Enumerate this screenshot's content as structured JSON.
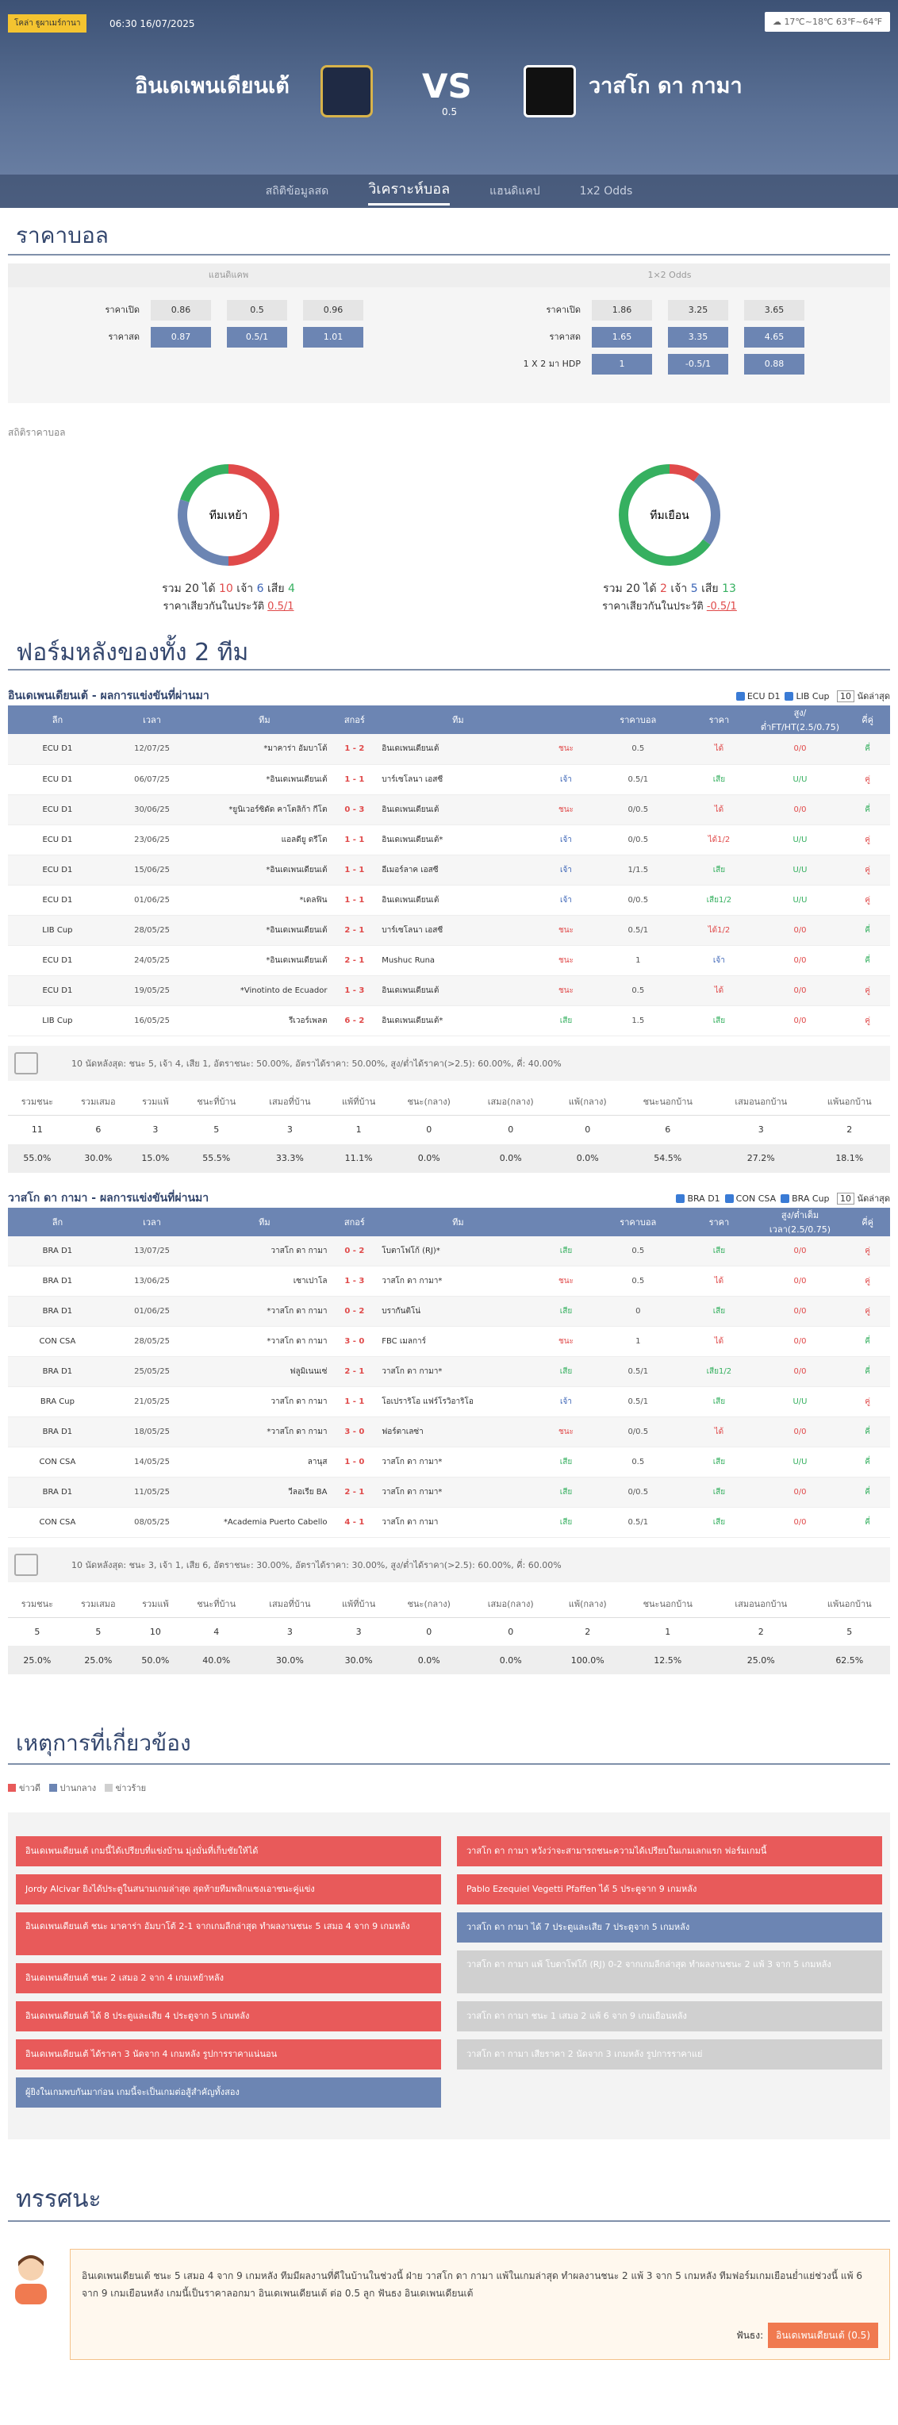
{
  "header": {
    "venue": "โคล่า ฐูผาเมร์กานา",
    "kickoff": "06:30 16/07/2025",
    "weather": "17℃~18℃ 63℉~64℉",
    "home": "อินเดเพนเดียนเต้",
    "away": "วาสโก ดา กามา",
    "vs": "VS",
    "handicap": "0.5"
  },
  "tabs": [
    {
      "label": "สถิติข้อมูลสด"
    },
    {
      "label": "วิเคราะห์บอล"
    },
    {
      "label": "แฮนดิแคป"
    },
    {
      "label": "1x2 Odds"
    }
  ],
  "odds": {
    "title": "ราคาบอล",
    "head_left": "แฮนดิแคพ",
    "head_right": "1×2 Odds",
    "left": [
      {
        "label": "ราคาเปิด",
        "v": [
          "0.86",
          "0.5",
          "0.96"
        ]
      },
      {
        "label": "ราคาสด",
        "v": [
          "0.87",
          "0.5/1",
          "1.01"
        ]
      }
    ],
    "right": [
      {
        "label": "ราคาเปิด",
        "v": [
          "1.86",
          "3.25",
          "3.65"
        ]
      },
      {
        "label": "ราคาสด",
        "v": [
          "1.65",
          "3.35",
          "4.65"
        ]
      },
      {
        "label": "1 X 2 มา HDP",
        "v": [
          "1",
          "-0.5/1",
          "0.88"
        ]
      }
    ]
  },
  "stats_label": "สถิติราคาบอล",
  "donuts": [
    {
      "center": "ทีมเหย้า",
      "total_l": "รวม",
      "total": "20",
      "win_l": "ได้",
      "win": "10",
      "draw_l": "เจ้า",
      "draw": "6",
      "loss_l": "เสีย",
      "loss": "4",
      "rate_l": "ราคาเสียวกันในประวัติ",
      "rate": "0.5/1",
      "shares": [
        0.5,
        0.3,
        0.2
      ]
    },
    {
      "center": "ทีมเยือน",
      "total_l": "รวม",
      "total": "20",
      "win_l": "ได้",
      "win": "2",
      "draw_l": "เจ้า",
      "draw": "5",
      "loss_l": "เสีย",
      "loss": "13",
      "rate_l": "ราคาเสียวกันในประวัติ",
      "rate": "-0.5/1",
      "shares": [
        0.1,
        0.25,
        0.65
      ]
    }
  ],
  "form_title": "ฟอร์มหลังของทั้ง 2 ทีม",
  "home_table": {
    "title": "อินเดเพนเดียนเต้ - ผลการแข่งขันที่ผ่านมา",
    "filters": [
      "ECU D1",
      "LIB Cup"
    ],
    "count": "10",
    "filter_tail": "นัดล่าสุด",
    "headers": [
      "ลีก",
      "เวลา",
      "ทีม",
      "สกอร์",
      "ทีม",
      "",
      "ราคาบอล",
      "ราคา",
      "สูง/ต่ำFT/HT(2.5/0.75)",
      "คี่คู่"
    ],
    "rows": [
      [
        "ECU D1",
        "12/07/25",
        "*มาคาร่า อัมบาโต้",
        "1 - 2",
        "อินเดเพนเดียนเต้",
        "ชนะ",
        "0.5",
        "ได้",
        "0/0",
        "คี่"
      ],
      [
        "ECU D1",
        "06/07/25",
        "*อินเดเพนเดียนเต้",
        "1 - 1",
        "บาร์เซโลนา เอสซี",
        "เจ้า",
        "0.5/1",
        "เสีย",
        "U/U",
        "คู่"
      ],
      [
        "ECU D1",
        "30/06/25",
        "*ยูนิเวอร์ซิดัด คาโตลิก้า กีโต",
        "0 - 3",
        "อินเดเพนเดียนเต้",
        "ชนะ",
        "0/0.5",
        "ได้",
        "0/0",
        "คี่"
      ],
      [
        "ECU D1",
        "23/06/25",
        "แอลดียู ดรีโต",
        "1 - 1",
        "อินเดเพนเดียนเต้*",
        "เจ้า",
        "0/0.5",
        "ได้1/2",
        "U/U",
        "คู่"
      ],
      [
        "ECU D1",
        "15/06/25",
        "*อินเดเพนเดียนเต้",
        "1 - 1",
        "อีเมอร์ลาค เอสซี",
        "เจ้า",
        "1/1.5",
        "เสีย",
        "U/U",
        "คู่"
      ],
      [
        "ECU D1",
        "01/06/25",
        "*เดลฟิน",
        "1 - 1",
        "อินเดเพนเดียนเต้",
        "เจ้า",
        "0/0.5",
        "เสีย1/2",
        "U/U",
        "คู่"
      ],
      [
        "LIB Cup",
        "28/05/25",
        "*อินเดเพนเดียนเต้",
        "2 - 1",
        "บาร์เซโลนา เอสซี",
        "ชนะ",
        "0.5/1",
        "ได้1/2",
        "0/0",
        "คี่"
      ],
      [
        "ECU D1",
        "24/05/25",
        "*อินเดเพนเดียนเต้",
        "2 - 1",
        "Mushuc Runa",
        "ชนะ",
        "1",
        "เจ้า",
        "0/0",
        "คี่"
      ],
      [
        "ECU D1",
        "19/05/25",
        "*Vinotinto de Ecuador",
        "1 - 3",
        "อินเดเพนเดียนเต้",
        "ชนะ",
        "0.5",
        "ได้",
        "0/0",
        "คู่"
      ],
      [
        "LIB Cup",
        "16/05/25",
        "รีเวอร์เพลต",
        "6 - 2",
        "อินเดเพนเดียนเต้*",
        "เสีย",
        "1.5",
        "เสีย",
        "0/0",
        "คู่"
      ]
    ],
    "summary": "10 นัดหลังสุด: ชนะ 5, เจ้า 4, เสีย 1, อัตราชนะ: 50.00%, อัตราได้ราคา: 50.00%, สูง/ต่ำได้ราคา(>2.5): 60.00%, คี่: 40.00%",
    "stat_headers": [
      "รวมชนะ",
      "รวมเสมอ",
      "รวมแพ้",
      "ชนะที่บ้าน",
      "เสมอที่บ้าน",
      "แพ้ที่บ้าน",
      "ชนะ(กลาง)",
      "เสมอ(กลาง)",
      "แพ้(กลาง)",
      "ชนะนอกบ้าน",
      "เสมอนอกบ้าน",
      "แพ้นอกบ้าน"
    ],
    "stat_counts": [
      "11",
      "6",
      "3",
      "5",
      "3",
      "1",
      "0",
      "0",
      "0",
      "6",
      "3",
      "2"
    ],
    "stat_pcts": [
      "55.0%",
      "30.0%",
      "15.0%",
      "55.5%",
      "33.3%",
      "11.1%",
      "0.0%",
      "0.0%",
      "0.0%",
      "54.5%",
      "27.2%",
      "18.1%"
    ]
  },
  "away_table": {
    "title": "วาสโก ดา กามา - ผลการแข่งขันที่ผ่านมา",
    "filters": [
      "BRA D1",
      "CON CSA",
      "BRA Cup"
    ],
    "count": "10",
    "filter_tail": "นัดล่าสุด",
    "headers": [
      "ลีก",
      "เวลา",
      "ทีม",
      "สกอร์",
      "ทีม",
      "",
      "ราคาบอล",
      "ราคา",
      "สูง/ต่ำเต็มเวลา(2.5/0.75)",
      "คี่คู่"
    ],
    "rows": [
      [
        "BRA D1",
        "13/07/25",
        "วาสโก ดา กามา",
        "0 - 2",
        "โบตาโฟโก้ (RJ)*",
        "เสีย",
        "0.5",
        "เสีย",
        "0/0",
        "คู่"
      ],
      [
        "BRA D1",
        "13/06/25",
        "เซาเปาโล",
        "1 - 3",
        "วาสโก ดา กามา*",
        "ชนะ",
        "0.5",
        "ได้",
        "0/0",
        "คู่"
      ],
      [
        "BRA D1",
        "01/06/25",
        "*วาสโก ดา กามา",
        "0 - 2",
        "บรากันติโน่",
        "เสีย",
        "0",
        "เสีย",
        "0/0",
        "คู่"
      ],
      [
        "CON CSA",
        "28/05/25",
        "*วาสโก ดา กามา",
        "3 - 0",
        "FBC เมลการ์",
        "ชนะ",
        "1",
        "ได้",
        "0/0",
        "คี่"
      ],
      [
        "BRA D1",
        "25/05/25",
        "ฟลูมิเนนเซ่",
        "2 - 1",
        "วาสโก ดา กามา*",
        "เสีย",
        "0.5/1",
        "เสีย1/2",
        "0/0",
        "คี่"
      ],
      [
        "BRA Cup",
        "21/05/25",
        "วาสโก ดา กามา",
        "1 - 1",
        "โอเปราริโอ แฟร์โรวิอาริโอ",
        "เจ้า",
        "0.5/1",
        "เสีย",
        "U/U",
        "คู่"
      ],
      [
        "BRA D1",
        "18/05/25",
        "*วาสโก ดา กามา",
        "3 - 0",
        "ฟอร์ตาเลซ่า",
        "ชนะ",
        "0/0.5",
        "ได้",
        "0/0",
        "คี่"
      ],
      [
        "CON CSA",
        "14/05/25",
        "ลานุส",
        "1 - 0",
        "วาสโก ดา กามา*",
        "เสีย",
        "0.5",
        "เสีย",
        "U/U",
        "คี่"
      ],
      [
        "BRA D1",
        "11/05/25",
        "วีลอเรีย BA",
        "2 - 1",
        "วาสโก ดา กามา*",
        "เสีย",
        "0/0.5",
        "เสีย",
        "0/0",
        "คี่"
      ],
      [
        "CON CSA",
        "08/05/25",
        "*Academia Puerto Cabello",
        "4 - 1",
        "วาสโก ดา กามา",
        "เสีย",
        "0.5/1",
        "เสีย",
        "0/0",
        "คี่"
      ]
    ],
    "summary": "10 นัดหลังสุด: ชนะ 3, เจ้า 1, เสีย 6, อัตราชนะ: 30.00%, อัตราได้ราคา: 30.00%, สูง/ต่ำได้ราคา(>2.5): 60.00%, คี่: 60.00%",
    "stat_headers": [
      "รวมชนะ",
      "รวมเสมอ",
      "รวมแพ้",
      "ชนะที่บ้าน",
      "เสมอที่บ้าน",
      "แพ้ที่บ้าน",
      "ชนะ(กลาง)",
      "เสมอ(กลาง)",
      "แพ้(กลาง)",
      "ชนะนอกบ้าน",
      "เสมอนอกบ้าน",
      "แพ้นอกบ้าน"
    ],
    "stat_counts": [
      "5",
      "5",
      "10",
      "4",
      "3",
      "3",
      "0",
      "0",
      "2",
      "1",
      "2",
      "5"
    ],
    "stat_pcts": [
      "25.0%",
      "25.0%",
      "50.0%",
      "40.0%",
      "30.0%",
      "30.0%",
      "0.0%",
      "0.0%",
      "100.0%",
      "12.5%",
      "25.0%",
      "62.5%"
    ]
  },
  "events": {
    "title": "เหตุการที่เกี่ยวข้อง",
    "legend": [
      "ข่าวดี",
      "ปานกลาง",
      "ข่าวร้าย"
    ],
    "left": [
      {
        "t": "อินเดเพนเดียนเต้ เกมนี้ได้เปรียบที่แข่งบ้าน มุ่งมั่นที่เก็บชัยให้ได้",
        "c": "red"
      },
      {
        "t": "Jordy Alcivar ยิงได้ประตูในสนามเกมล่าสุด สุดท้ายทีมพลิกแซงเอาชนะคู่แข่ง",
        "c": "red"
      },
      {
        "t": "อินเดเพนเดียนเต้ ชนะ มาคาร่า อัมบาโต้ 2-1 จากเกมลีกล่าสุด ทำผลงานชนะ 5 เสมอ 4 จาก 9 เกมหลัง",
        "c": "red",
        "tall": true
      },
      {
        "t": "อินเดเพนเดียนเต้ ชนะ 2 เสมอ 2 จาก 4 เกมเหย้าหลัง",
        "c": "red"
      },
      {
        "t": "อินเดเพนเดียนเต้ ได้ 8 ประตูและเสีย 4 ประตูจาก 5 เกมหลัง",
        "c": "red"
      },
      {
        "t": "อินเดเพนเดียนเต้ ได้ราคา 3 นัดจาก 4 เกมหลัง รูปการราคาแน่นอน",
        "c": "red"
      },
      {
        "t": "ผู้ยิงในเกมพบกันมาก่อน เกมนี้จะเป็นเกมต่อสู้สำคัญทั้งสอง",
        "c": "blue"
      }
    ],
    "right": [
      {
        "t": "วาสโก ดา กามา หวังว่าจะสามารถชนะความได้เปรียบในเกมเลกแรก ฟอร์มเกมนี้",
        "c": "red"
      },
      {
        "t": "Pablo Ezequiel Vegetti Pfaffen ได้ 5 ประตูจาก 9 เกมหลัง",
        "c": "red"
      },
      {
        "t": "วาสโก ดา กามา ได้ 7 ประตูและเสีย 7 ประตูจาก 5 เกมหลัง",
        "c": "blue"
      },
      {
        "t": "วาสโก ดา กามา แพ้ โบตาโฟโก้ (RJ) 0-2 จากเกมลีกล่าสุด ทำผลงานชนะ 2 แพ้ 3 จาก 5 เกมหลัง",
        "c": "gray",
        "tall": true
      },
      {
        "t": "วาสโก ดา กามา ชนะ 1 เสมอ 2 แพ้ 6 จาก 9 เกมเยือนหลัง",
        "c": "gray"
      },
      {
        "t": "วาสโก ดา กามา เสียราคา 2 นัดจาก 3 เกมหลัง รูปการราคาแย่",
        "c": "gray"
      }
    ]
  },
  "opinion": {
    "title": "ทรรศนะ",
    "text": "อินเดเพนเดียนเต้ ชนะ 5 เสมอ 4 จาก 9 เกมหลัง ทีมมีผลงานที่ดีในบ้านในช่วงนี้ ฝ่าย วาสโก ดา กามา แพ้ในเกมล่าสุด ทำผลงานชนะ 2 แพ้ 3 จาก 5 เกมหลัง ทีมฟอร์มเกมเยือนย่ำแย่ช่วงนี้ แพ้ 6 จาก 9 เกมเยือนหลัง เกมนี้เป็นราคาลอกมา อินเดเพนเดียนเต้ ต่อ 0.5 ลูก ฟันธง อินเดเพนเดียนเต้",
    "bet_label": "ฟันธง:",
    "bet": "อินเดเพนเดียนเต้",
    "bet_line": "(0.5)"
  },
  "colors": {
    "win": "#e04a4a",
    "draw": "#36b060",
    "loss": "#6c85b3"
  }
}
